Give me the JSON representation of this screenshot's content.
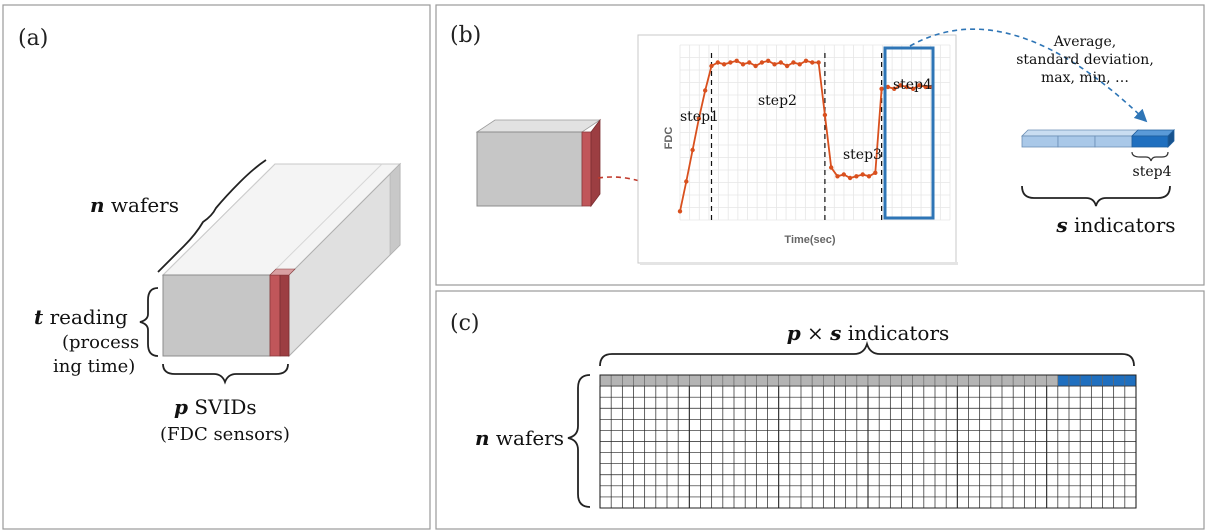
{
  "panels": {
    "a": {
      "label": "(a)",
      "n_var": "n",
      "n_text": " wafers",
      "t_var": "t",
      "t_text": " reading",
      "t_sub1": "(process",
      "t_sub2": "ing time)",
      "p_var": "p",
      "p_text": " SVIDs",
      "p_sub": "(FDC sensors)"
    },
    "b": {
      "label": "(b)",
      "chart_ylabel": "FDC",
      "chart_xlabel": "Time(sec)",
      "steps": [
        "step1",
        "step2",
        "step3",
        "step4"
      ],
      "stats_line1": "Average,",
      "stats_line2": "standard deviation,",
      "stats_line3": "max, min, …",
      "bar_step_label": "step4",
      "s_var": "s",
      "s_text": " indicators"
    },
    "c": {
      "label": "(c)",
      "title_p": "p",
      "title_times": " × ",
      "title_s": "s",
      "title_text": " indicators",
      "n_var": "n",
      "n_text": " wafers"
    }
  },
  "colors": {
    "border": "#9a9a9a",
    "cube_front": "#c6c6c6",
    "cube_red": "#c0565a",
    "line_orange": "#d9501e",
    "highlight_blue": "#2e75b6",
    "bar_light": "#a9c8e8",
    "bar_dark": "#1f6fbf",
    "grid_gray": "#bfbfbf"
  },
  "chart_data": {
    "type": "line",
    "title": "",
    "xlabel": "Time(sec)",
    "ylabel": "FDC",
    "series": [
      {
        "points": [
          [
            0.0,
            0.05
          ],
          [
            0.5,
            0.22
          ],
          [
            1,
            0.4
          ],
          [
            1.5,
            0.58
          ],
          [
            2,
            0.74
          ],
          [
            2.5,
            0.88
          ],
          [
            3,
            0.9
          ],
          [
            3.5,
            0.89
          ],
          [
            4,
            0.9
          ],
          [
            4.5,
            0.91
          ],
          [
            5,
            0.89
          ],
          [
            5.5,
            0.9
          ],
          [
            6,
            0.88
          ],
          [
            6.5,
            0.9
          ],
          [
            7,
            0.91
          ],
          [
            7.5,
            0.89
          ],
          [
            8,
            0.9
          ],
          [
            8.5,
            0.88
          ],
          [
            9,
            0.9
          ],
          [
            9.5,
            0.89
          ],
          [
            10,
            0.91
          ],
          [
            10.5,
            0.9
          ],
          [
            11,
            0.9
          ],
          [
            11.5,
            0.6
          ],
          [
            12,
            0.3
          ],
          [
            12.5,
            0.25
          ],
          [
            13,
            0.26
          ],
          [
            13.5,
            0.24
          ],
          [
            14,
            0.25
          ],
          [
            14.5,
            0.26
          ],
          [
            15,
            0.25
          ],
          [
            15.5,
            0.27
          ],
          [
            16,
            0.75
          ],
          [
            16.5,
            0.76
          ],
          [
            17,
            0.75
          ],
          [
            17.5,
            0.77
          ],
          [
            18,
            0.76
          ],
          [
            18.5,
            0.75
          ],
          [
            19,
            0.77
          ],
          [
            19.5,
            0.76
          ],
          [
            20,
            0.76
          ]
        ]
      }
    ],
    "grid": true,
    "step_boundaries": [
      2.5,
      11.5,
      16.0
    ]
  }
}
